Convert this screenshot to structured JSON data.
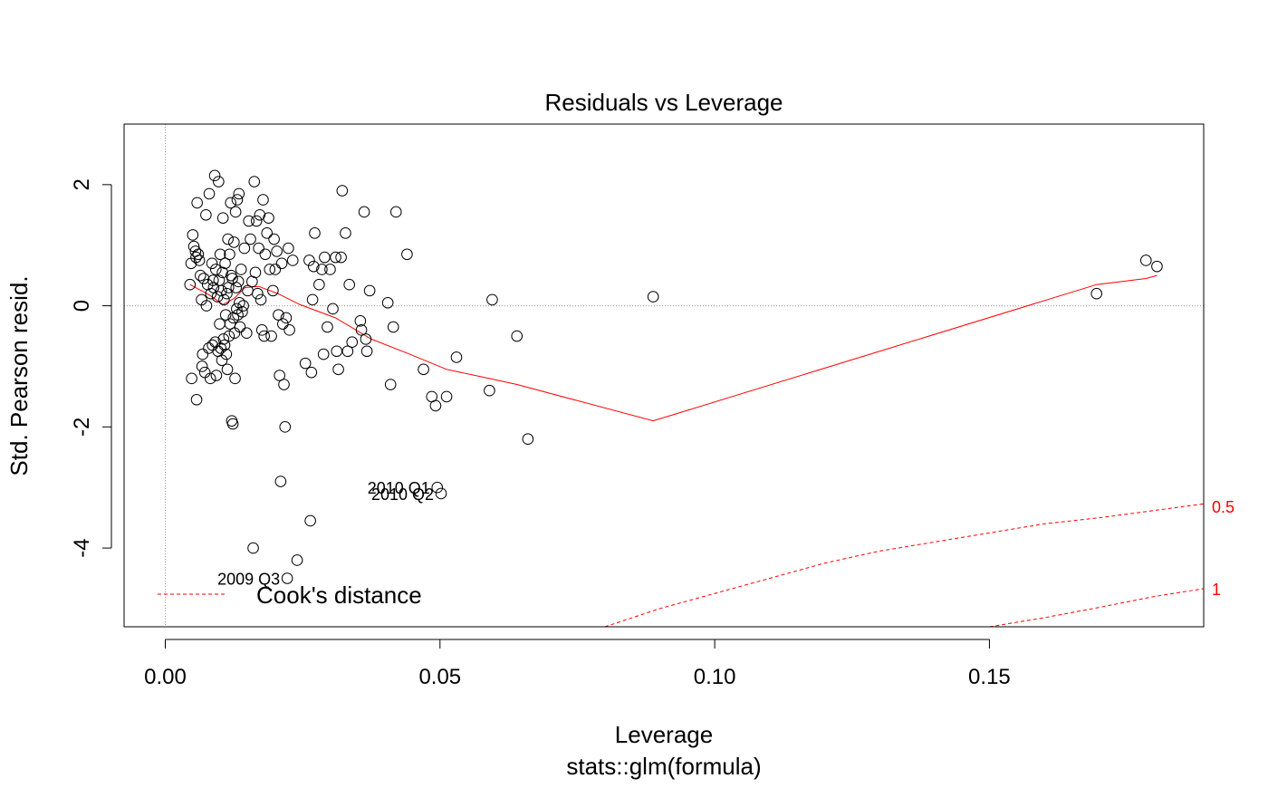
{
  "chart_data": {
    "type": "scatter",
    "title": "Residuals vs Leverage",
    "xlabel": "Leverage",
    "xsubtitle": "stats::glm(formula)",
    "ylabel": "Std. Pearson resid.",
    "xlim": [
      -0.0075,
      0.189
    ],
    "ylim": [
      -5.3,
      3.0
    ],
    "xticks": [
      0.0,
      0.05,
      0.1,
      0.15
    ],
    "xtick_labels": [
      "0.00",
      "0.05",
      "0.10",
      "0.15"
    ],
    "yticks": [
      2,
      0,
      -2,
      -4
    ],
    "ytick_labels": [
      "2",
      "0",
      "-2",
      "-4"
    ],
    "grid": false,
    "reference_lines": {
      "x": 0,
      "y": 0
    },
    "colors": {
      "points": "#000000",
      "smooth": "#ff0000",
      "cook": "#ff0000",
      "reference": "#999999",
      "axis": "#000000"
    },
    "points": [
      {
        "x": 0.0045,
        "y": 0.35
      },
      {
        "x": 0.0047,
        "y": 0.7
      },
      {
        "x": 0.0048,
        "y": -1.2
      },
      {
        "x": 0.005,
        "y": 1.17
      },
      {
        "x": 0.0052,
        "y": 0.98
      },
      {
        "x": 0.0055,
        "y": 0.9
      },
      {
        "x": 0.0056,
        "y": 0.8
      },
      {
        "x": 0.0057,
        "y": -1.55
      },
      {
        "x": 0.0058,
        "y": 1.7
      },
      {
        "x": 0.006,
        "y": 0.85
      },
      {
        "x": 0.0062,
        "y": 0.75
      },
      {
        "x": 0.0064,
        "y": 0.5
      },
      {
        "x": 0.0066,
        "y": 0.1
      },
      {
        "x": 0.0067,
        "y": -1.0
      },
      {
        "x": 0.0068,
        "y": -0.8
      },
      {
        "x": 0.007,
        "y": 0.45
      },
      {
        "x": 0.0072,
        "y": -1.1
      },
      {
        "x": 0.0074,
        "y": 1.5
      },
      {
        "x": 0.0075,
        "y": 0.0
      },
      {
        "x": 0.0077,
        "y": 0.35
      },
      {
        "x": 0.0079,
        "y": -0.7
      },
      {
        "x": 0.008,
        "y": 1.85
      },
      {
        "x": 0.0082,
        "y": -1.2
      },
      {
        "x": 0.0083,
        "y": 0.2
      },
      {
        "x": 0.0085,
        "y": 0.7
      },
      {
        "x": 0.0086,
        "y": -0.65
      },
      {
        "x": 0.0087,
        "y": 0.42
      },
      {
        "x": 0.0088,
        "y": 0.3
      },
      {
        "x": 0.009,
        "y": 2.15
      },
      {
        "x": 0.0091,
        "y": -0.6
      },
      {
        "x": 0.0092,
        "y": 0.6
      },
      {
        "x": 0.0093,
        "y": -1.15
      },
      {
        "x": 0.0095,
        "y": 0.15
      },
      {
        "x": 0.0096,
        "y": -0.75
      },
      {
        "x": 0.0097,
        "y": 2.05
      },
      {
        "x": 0.0098,
        "y": 0.42
      },
      {
        "x": 0.0099,
        "y": -0.3
      },
      {
        "x": 0.01,
        "y": 0.85
      },
      {
        "x": 0.0101,
        "y": -0.7
      },
      {
        "x": 0.0102,
        "y": 0.25
      },
      {
        "x": 0.0103,
        "y": -0.9
      },
      {
        "x": 0.0104,
        "y": 0.55
      },
      {
        "x": 0.0105,
        "y": 1.45
      },
      {
        "x": 0.0106,
        "y": -0.55
      },
      {
        "x": 0.0107,
        "y": 0.1
      },
      {
        "x": 0.0108,
        "y": -0.65
      },
      {
        "x": 0.0109,
        "y": 0.7
      },
      {
        "x": 0.011,
        "y": -0.15
      },
      {
        "x": 0.0111,
        "y": -0.8
      },
      {
        "x": 0.0112,
        "y": 0.2
      },
      {
        "x": 0.0113,
        "y": -1.05
      },
      {
        "x": 0.0114,
        "y": 1.1
      },
      {
        "x": 0.0115,
        "y": 0.3
      },
      {
        "x": 0.0116,
        "y": -0.5
      },
      {
        "x": 0.0117,
        "y": 0.85
      },
      {
        "x": 0.0118,
        "y": -0.3
      },
      {
        "x": 0.0119,
        "y": 1.7
      },
      {
        "x": 0.012,
        "y": 0.5
      },
      {
        "x": 0.0121,
        "y": -1.9
      },
      {
        "x": 0.0122,
        "y": 0.45
      },
      {
        "x": 0.0123,
        "y": -1.95
      },
      {
        "x": 0.0124,
        "y": -0.2
      },
      {
        "x": 0.0125,
        "y": 1.05
      },
      {
        "x": 0.0126,
        "y": -0.45
      },
      {
        "x": 0.0127,
        "y": -1.2
      },
      {
        "x": 0.0128,
        "y": 1.55
      },
      {
        "x": 0.0129,
        "y": 0.3
      },
      {
        "x": 0.013,
        "y": -0.05
      },
      {
        "x": 0.0131,
        "y": 1.75
      },
      {
        "x": 0.0132,
        "y": -0.15
      },
      {
        "x": 0.0133,
        "y": 0.4
      },
      {
        "x": 0.0134,
        "y": 1.85
      },
      {
        "x": 0.0135,
        "y": 0.05
      },
      {
        "x": 0.0136,
        "y": -0.35
      },
      {
        "x": 0.0138,
        "y": 0.6
      },
      {
        "x": 0.014,
        "y": -0.1
      },
      {
        "x": 0.0142,
        "y": 0.0
      },
      {
        "x": 0.0144,
        "y": 0.95
      },
      {
        "x": 0.0148,
        "y": -0.45
      },
      {
        "x": 0.015,
        "y": 0.25
      },
      {
        "x": 0.0152,
        "y": 1.4
      },
      {
        "x": 0.0155,
        "y": 1.1
      },
      {
        "x": 0.0158,
        "y": 0.4
      },
      {
        "x": 0.016,
        "y": -4.0
      },
      {
        "x": 0.0162,
        "y": 2.05
      },
      {
        "x": 0.0164,
        "y": 0.55
      },
      {
        "x": 0.0166,
        "y": 1.4
      },
      {
        "x": 0.0168,
        "y": 0.2
      },
      {
        "x": 0.017,
        "y": 0.95
      },
      {
        "x": 0.0172,
        "y": 1.5
      },
      {
        "x": 0.0174,
        "y": 0.1
      },
      {
        "x": 0.0176,
        "y": -0.4
      },
      {
        "x": 0.0178,
        "y": 1.75
      },
      {
        "x": 0.018,
        "y": -0.5
      },
      {
        "x": 0.0182,
        "y": 0.85
      },
      {
        "x": 0.0185,
        "y": 1.2
      },
      {
        "x": 0.0188,
        "y": 1.45
      },
      {
        "x": 0.019,
        "y": 0.6
      },
      {
        "x": 0.0193,
        "y": -0.5
      },
      {
        "x": 0.0196,
        "y": 0.25
      },
      {
        "x": 0.0198,
        "y": 1.1
      },
      {
        "x": 0.02,
        "y": 0.6
      },
      {
        "x": 0.0203,
        "y": 0.9
      },
      {
        "x": 0.0206,
        "y": -0.15
      },
      {
        "x": 0.0208,
        "y": -1.15
      },
      {
        "x": 0.021,
        "y": -2.9
      },
      {
        "x": 0.0212,
        "y": 0.7
      },
      {
        "x": 0.0214,
        "y": -0.3
      },
      {
        "x": 0.0216,
        "y": -1.3
      },
      {
        "x": 0.0218,
        "y": -2.0
      },
      {
        "x": 0.022,
        "y": -0.2
      },
      {
        "x": 0.0222,
        "y": -4.5
      },
      {
        "x": 0.0224,
        "y": 0.95
      },
      {
        "x": 0.0226,
        "y": -0.4
      },
      {
        "x": 0.0232,
        "y": 0.75
      },
      {
        "x": 0.024,
        "y": -4.2
      },
      {
        "x": 0.0255,
        "y": -0.95
      },
      {
        "x": 0.0262,
        "y": 0.75
      },
      {
        "x": 0.0264,
        "y": -3.55
      },
      {
        "x": 0.0266,
        "y": -1.1
      },
      {
        "x": 0.0268,
        "y": 0.1
      },
      {
        "x": 0.027,
        "y": 0.65
      },
      {
        "x": 0.0272,
        "y": 1.2
      },
      {
        "x": 0.028,
        "y": 0.35
      },
      {
        "x": 0.0285,
        "y": 0.6
      },
      {
        "x": 0.0288,
        "y": -0.8
      },
      {
        "x": 0.029,
        "y": 0.8
      },
      {
        "x": 0.0295,
        "y": -0.35
      },
      {
        "x": 0.03,
        "y": 0.6
      },
      {
        "x": 0.0305,
        "y": -0.05
      },
      {
        "x": 0.031,
        "y": 0.8
      },
      {
        "x": 0.0312,
        "y": -0.75
      },
      {
        "x": 0.0315,
        "y": -1.05
      },
      {
        "x": 0.032,
        "y": 0.8
      },
      {
        "x": 0.0322,
        "y": 1.9
      },
      {
        "x": 0.0328,
        "y": 1.2
      },
      {
        "x": 0.0332,
        "y": -0.75
      },
      {
        "x": 0.0335,
        "y": 0.35
      },
      {
        "x": 0.034,
        "y": -0.6
      },
      {
        "x": 0.0355,
        "y": -0.25
      },
      {
        "x": 0.0357,
        "y": -0.4
      },
      {
        "x": 0.0362,
        "y": 1.55
      },
      {
        "x": 0.0365,
        "y": -0.55
      },
      {
        "x": 0.0367,
        "y": -0.75
      },
      {
        "x": 0.0372,
        "y": 0.25
      },
      {
        "x": 0.0405,
        "y": 0.05
      },
      {
        "x": 0.041,
        "y": -1.3
      },
      {
        "x": 0.0415,
        "y": -0.35
      },
      {
        "x": 0.042,
        "y": 1.55
      },
      {
        "x": 0.044,
        "y": 0.85
      },
      {
        "x": 0.047,
        "y": -1.05
      },
      {
        "x": 0.0485,
        "y": -1.5
      },
      {
        "x": 0.0492,
        "y": -1.65
      },
      {
        "x": 0.0495,
        "y": -3.0
      },
      {
        "x": 0.0502,
        "y": -3.1
      },
      {
        "x": 0.0512,
        "y": -1.5
      },
      {
        "x": 0.053,
        "y": -0.85
      },
      {
        "x": 0.059,
        "y": -1.4
      },
      {
        "x": 0.0595,
        "y": 0.1
      },
      {
        "x": 0.064,
        "y": -0.5
      },
      {
        "x": 0.066,
        "y": -2.2
      },
      {
        "x": 0.0888,
        "y": 0.15
      },
      {
        "x": 0.1695,
        "y": 0.2
      },
      {
        "x": 0.1785,
        "y": 0.75
      },
      {
        "x": 0.1805,
        "y": 0.65
      }
    ],
    "smooth_line": [
      {
        "x": 0.0045,
        "y": 0.35
      },
      {
        "x": 0.008,
        "y": 0.18
      },
      {
        "x": 0.0105,
        "y": 0.02
      },
      {
        "x": 0.0125,
        "y": 0.12
      },
      {
        "x": 0.0145,
        "y": 0.3
      },
      {
        "x": 0.017,
        "y": 0.32
      },
      {
        "x": 0.0205,
        "y": 0.2
      },
      {
        "x": 0.0245,
        "y": 0.02
      },
      {
        "x": 0.031,
        "y": -0.2
      },
      {
        "x": 0.0375,
        "y": -0.55
      },
      {
        "x": 0.0445,
        "y": -0.8
      },
      {
        "x": 0.0512,
        "y": -1.05
      },
      {
        "x": 0.059,
        "y": -1.2
      },
      {
        "x": 0.064,
        "y": -1.3
      },
      {
        "x": 0.0888,
        "y": -1.9
      },
      {
        "x": 0.1695,
        "y": 0.35
      },
      {
        "x": 0.1785,
        "y": 0.45
      },
      {
        "x": 0.1805,
        "y": 0.5
      }
    ],
    "cook_curves": [
      {
        "label": "0.5",
        "points": [
          {
            "x": 0.08,
            "y": -5.3
          },
          {
            "x": 0.09,
            "y": -5.0
          },
          {
            "x": 0.1,
            "y": -4.75
          },
          {
            "x": 0.11,
            "y": -4.5
          },
          {
            "x": 0.12,
            "y": -4.25
          },
          {
            "x": 0.13,
            "y": -4.05
          },
          {
            "x": 0.14,
            "y": -3.9
          },
          {
            "x": 0.15,
            "y": -3.75
          },
          {
            "x": 0.16,
            "y": -3.6
          },
          {
            "x": 0.17,
            "y": -3.5
          },
          {
            "x": 0.18,
            "y": -3.38
          },
          {
            "x": 0.189,
            "y": -3.27
          }
        ]
      },
      {
        "label": "1",
        "points": [
          {
            "x": 0.15,
            "y": -5.3
          },
          {
            "x": 0.16,
            "y": -5.15
          },
          {
            "x": 0.17,
            "y": -4.98
          },
          {
            "x": 0.18,
            "y": -4.8
          },
          {
            "x": 0.189,
            "y": -4.67
          }
        ]
      }
    ],
    "point_labels": [
      {
        "text": "2010 Q1",
        "x": 0.0495,
        "y": -3.0
      },
      {
        "text": "2010 Q2",
        "x": 0.0502,
        "y": -3.1
      },
      {
        "text": "2009 Q3",
        "x": 0.0222,
        "y": -4.5
      }
    ],
    "legend": {
      "placement": "bottom-left",
      "entries": [
        {
          "label": "Cook's distance",
          "style": "dashed",
          "color": "#ff0000"
        }
      ]
    }
  }
}
